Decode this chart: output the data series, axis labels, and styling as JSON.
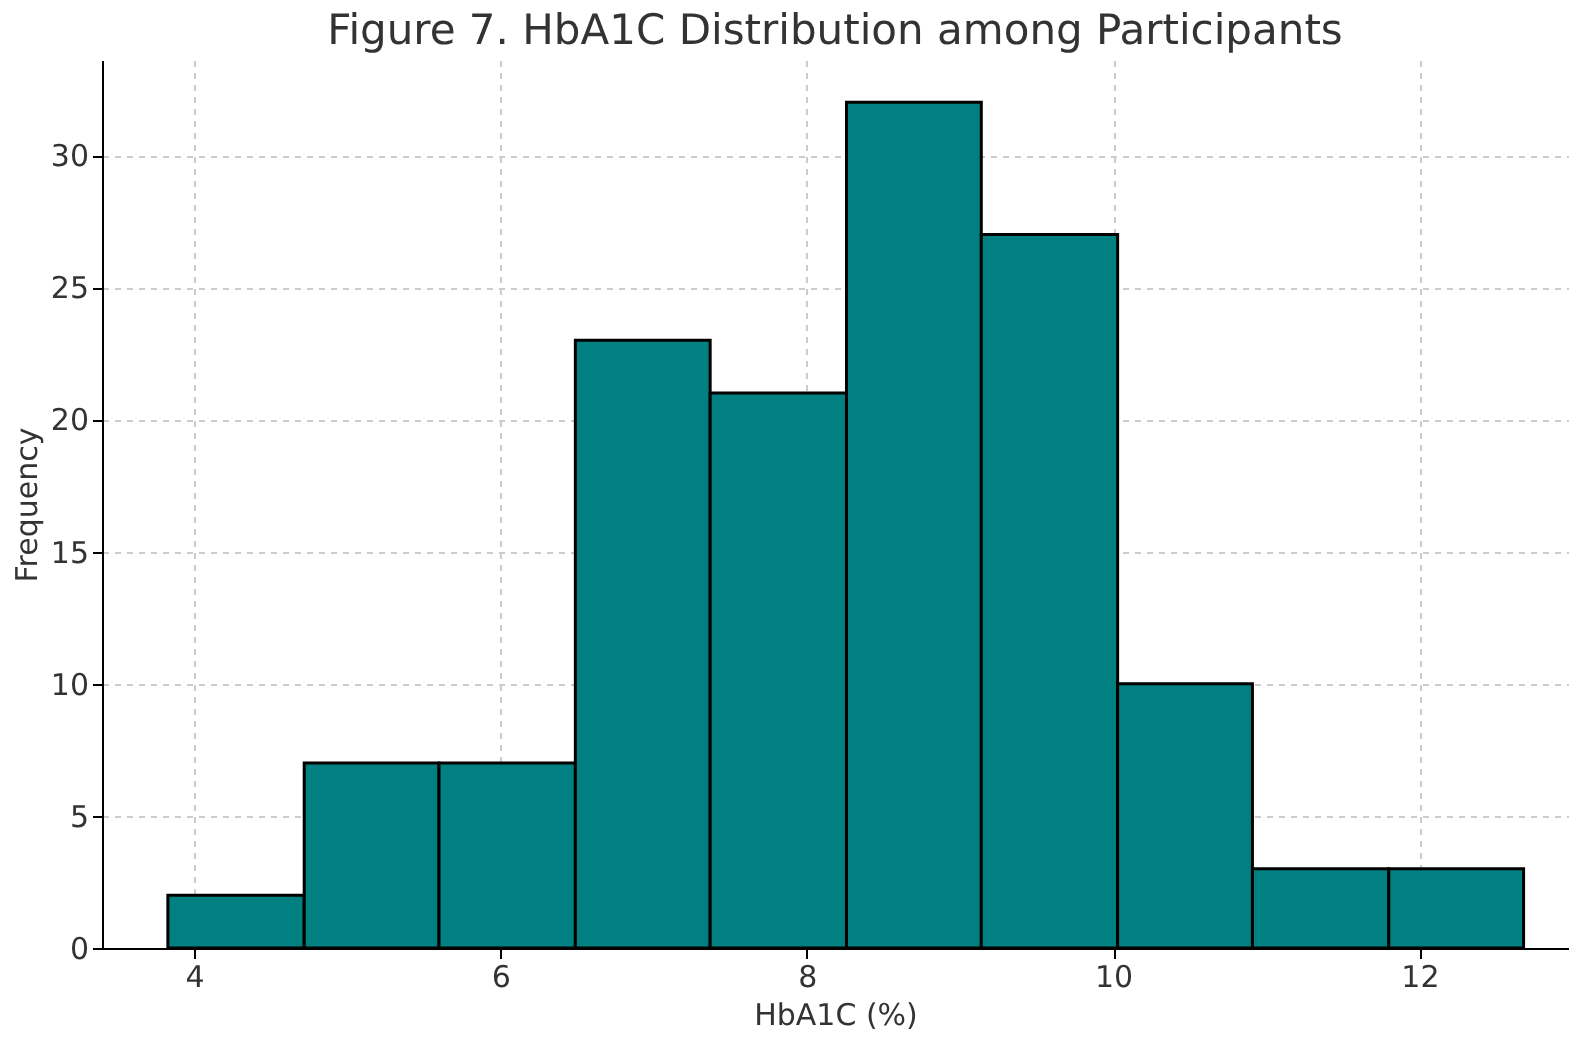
{
  "chart_data": {
    "type": "histogram",
    "title": "Figure 7. HbA1C Distribution among Participants",
    "xlabel": "HbA1C (%)",
    "ylabel": "Frequency",
    "bins": [
      3.83,
      4.72,
      5.6,
      6.49,
      7.37,
      8.26,
      9.14,
      10.03,
      10.91,
      11.8,
      12.68
    ],
    "values": [
      2,
      7,
      7,
      23,
      21,
      32,
      27,
      10,
      3,
      3
    ],
    "color": "#008080",
    "xlim": [
      3.4,
      12.97
    ],
    "xticks": [
      4,
      6,
      8,
      10,
      12
    ],
    "ylim": [
      0,
      33.6
    ],
    "yticks": [
      0,
      5,
      10,
      15,
      20,
      25,
      30
    ],
    "grid": true
  }
}
